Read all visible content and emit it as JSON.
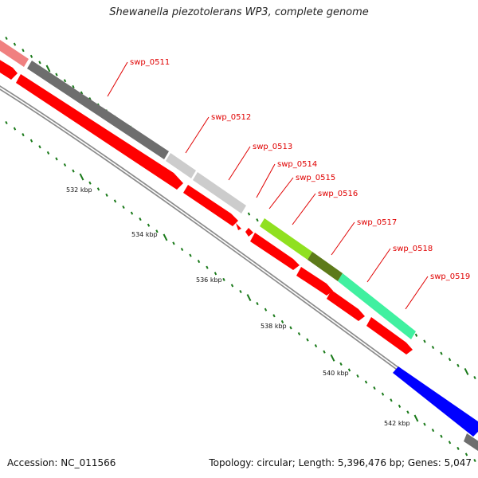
{
  "title": "Shewanella piezotolerans WP3, complete genome",
  "footer": {
    "accession": "Accession: NC_011566",
    "info": "Topology: circular; Length: 5,396,476 bp; Genes: 5,047"
  },
  "colors": {
    "forward_strand": "#ff0000",
    "reverse_strand": "#0000ff",
    "backbone": "#8c8c8c",
    "tick": "#1a7a1a",
    "gene_label": "#e00000",
    "cog_dark_gray": "#6e6e6e",
    "cog_light_gray": "#cccccc",
    "cog_pink": "#f08080",
    "cog_yellow_green": "#90e020",
    "cog_olive": "#5d7a1a",
    "cog_aquamarine": "#40f0a0"
  },
  "scale_labels": [
    "532 kbp",
    "534 kbp",
    "536 kbp",
    "538 kbp",
    "540 kbp",
    "542 kbp"
  ],
  "genes": [
    {
      "label": "swp_0511",
      "strand": "+",
      "cog": "dark gray"
    },
    {
      "label": "swp_0512",
      "strand": "+",
      "cog": "light gray"
    },
    {
      "label": "swp_0513",
      "strand": "+",
      "cog": "light gray"
    },
    {
      "label": "swp_0514",
      "strand": "+",
      "cog": "none"
    },
    {
      "label": "swp_0515",
      "strand": "+",
      "cog": "none"
    },
    {
      "label": "swp_0516",
      "strand": "+",
      "cog": "yellow-green"
    },
    {
      "label": "swp_0517",
      "strand": "+",
      "cog": "olive"
    },
    {
      "label": "swp_0518",
      "strand": "+",
      "cog": "aquamarine"
    },
    {
      "label": "swp_0519",
      "strand": "+",
      "cog": "aquamarine"
    }
  ]
}
